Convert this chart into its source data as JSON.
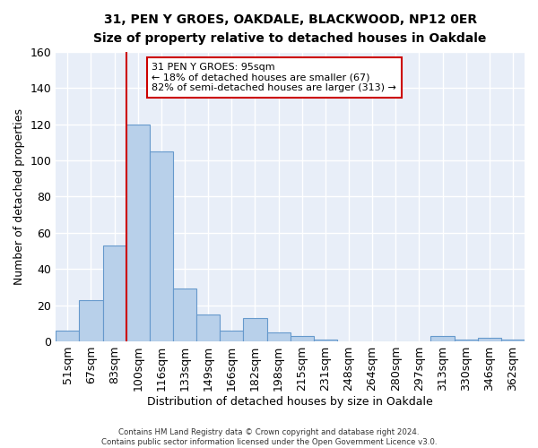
{
  "title": "31, PEN Y GROES, OAKDALE, BLACKWOOD, NP12 0ER",
  "subtitle": "Size of property relative to detached houses in Oakdale",
  "xlabel": "Distribution of detached houses by size in Oakdale",
  "ylabel": "Number of detached properties",
  "bar_values": [
    6,
    23,
    53,
    120,
    105,
    29,
    15,
    6,
    13,
    5,
    3,
    1,
    0,
    0,
    0,
    0,
    3,
    1,
    2,
    1
  ],
  "bin_labels": [
    "51sqm",
    "67sqm",
    "83sqm",
    "100sqm",
    "116sqm",
    "133sqm",
    "149sqm",
    "166sqm",
    "182sqm",
    "198sqm",
    "215sqm",
    "231sqm",
    "248sqm",
    "264sqm",
    "280sqm",
    "297sqm",
    "313sqm",
    "330sqm",
    "346sqm",
    "362sqm"
  ],
  "bar_color": "#b8d0ea",
  "bar_edge_color": "#6699cc",
  "vline_color": "#cc0000",
  "vline_pos": 2.5,
  "ylim": [
    0,
    160
  ],
  "yticks": [
    0,
    20,
    40,
    60,
    80,
    100,
    120,
    140,
    160
  ],
  "annotation_text_line1": "31 PEN Y GROES: 95sqm",
  "annotation_text_line2": "← 18% of detached houses are smaller (67)",
  "annotation_text_line3": "82% of semi-detached houses are larger (313) →",
  "footer_line1": "Contains HM Land Registry data © Crown copyright and database right 2024.",
  "footer_line2": "Contains public sector information licensed under the Open Government Licence v3.0.",
  "background_color": "#e8eef8",
  "grid_color": "#ffffff",
  "fig_bg_color": "#ffffff"
}
